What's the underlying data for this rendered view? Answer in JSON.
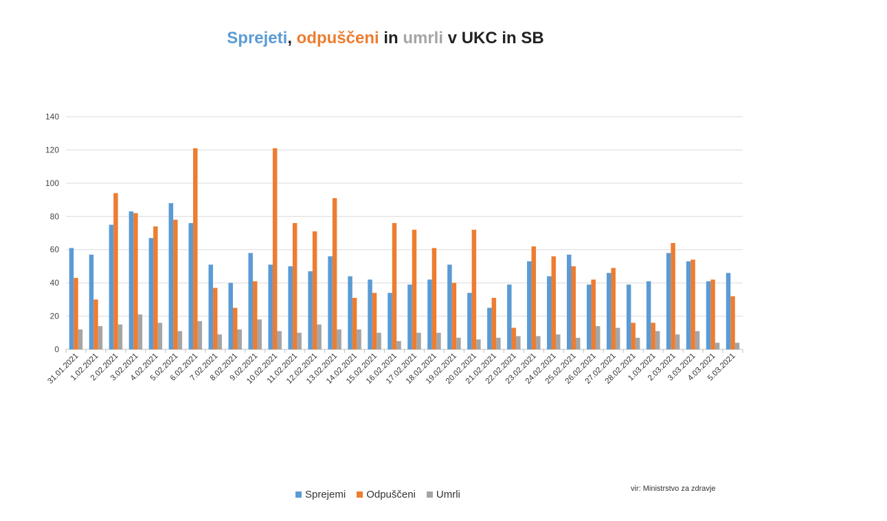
{
  "title": {
    "part1": "Sprejeti",
    "sep1": ", ",
    "part2": "odpuščeni",
    "sep2": " in ",
    "part3": "umrli",
    "sep3": " v UKC in SB"
  },
  "source": "vir: Ministrstvo za zdravje",
  "colors": {
    "sprejemi": "#5b9bd5",
    "odpusceni": "#ed7d31",
    "umrli": "#a5a5a5",
    "title_dark": "#222222",
    "grid": "#d9d9d9"
  },
  "chart_data": {
    "type": "bar",
    "legend_position": "bottom",
    "grid": true,
    "ylim": [
      0,
      140
    ],
    "yticks": [
      0,
      20,
      40,
      60,
      80,
      100,
      120,
      140
    ],
    "categories": [
      "31.01.2021",
      "1.02.2021",
      "2.02.2021",
      "3.02.2021",
      "4.02.2021",
      "5.02.2021",
      "6.02.2021",
      "7.02.2021",
      "8.02.2021",
      "9.02.2021",
      "10.02.2021",
      "11.02.2021",
      "12.02.2021",
      "13.02.2021",
      "14.02.2021",
      "15.02.2021",
      "16.02.2021",
      "17.02.2021",
      "18.02.2021",
      "19.02.2021",
      "20.02.2021",
      "21.02.2021",
      "22.02.2021",
      "23.02.2021",
      "24.02.2021",
      "25.02.2021",
      "26.02.2021",
      "27.02.2021",
      "28.02.2021",
      "1.03.2021",
      "2.03.2021",
      "3.03.2021",
      "4.03.2021",
      "5.03.2021"
    ],
    "series": [
      {
        "name": "Sprejemi",
        "values": [
          61,
          57,
          75,
          83,
          67,
          88,
          76,
          51,
          40,
          58,
          51,
          50,
          47,
          56,
          44,
          42,
          34,
          39,
          42,
          51,
          34,
          25,
          39,
          53,
          44,
          57,
          39,
          46,
          39,
          41,
          58,
          53,
          41,
          46
        ]
      },
      {
        "name": "Odpuščeni",
        "values": [
          43,
          30,
          94,
          82,
          74,
          78,
          121,
          37,
          25,
          41,
          121,
          76,
          71,
          91,
          31,
          34,
          76,
          72,
          61,
          40,
          72,
          31,
          13,
          62,
          56,
          50,
          42,
          49,
          16,
          16,
          64,
          54,
          42,
          32
        ]
      },
      {
        "name": "Umrli",
        "values": [
          12,
          14,
          15,
          21,
          16,
          11,
          17,
          9,
          12,
          18,
          11,
          10,
          15,
          12,
          12,
          10,
          5,
          10,
          10,
          7,
          6,
          7,
          8,
          8,
          9,
          7,
          14,
          13,
          7,
          11,
          9,
          11,
          4,
          4
        ]
      }
    ]
  }
}
